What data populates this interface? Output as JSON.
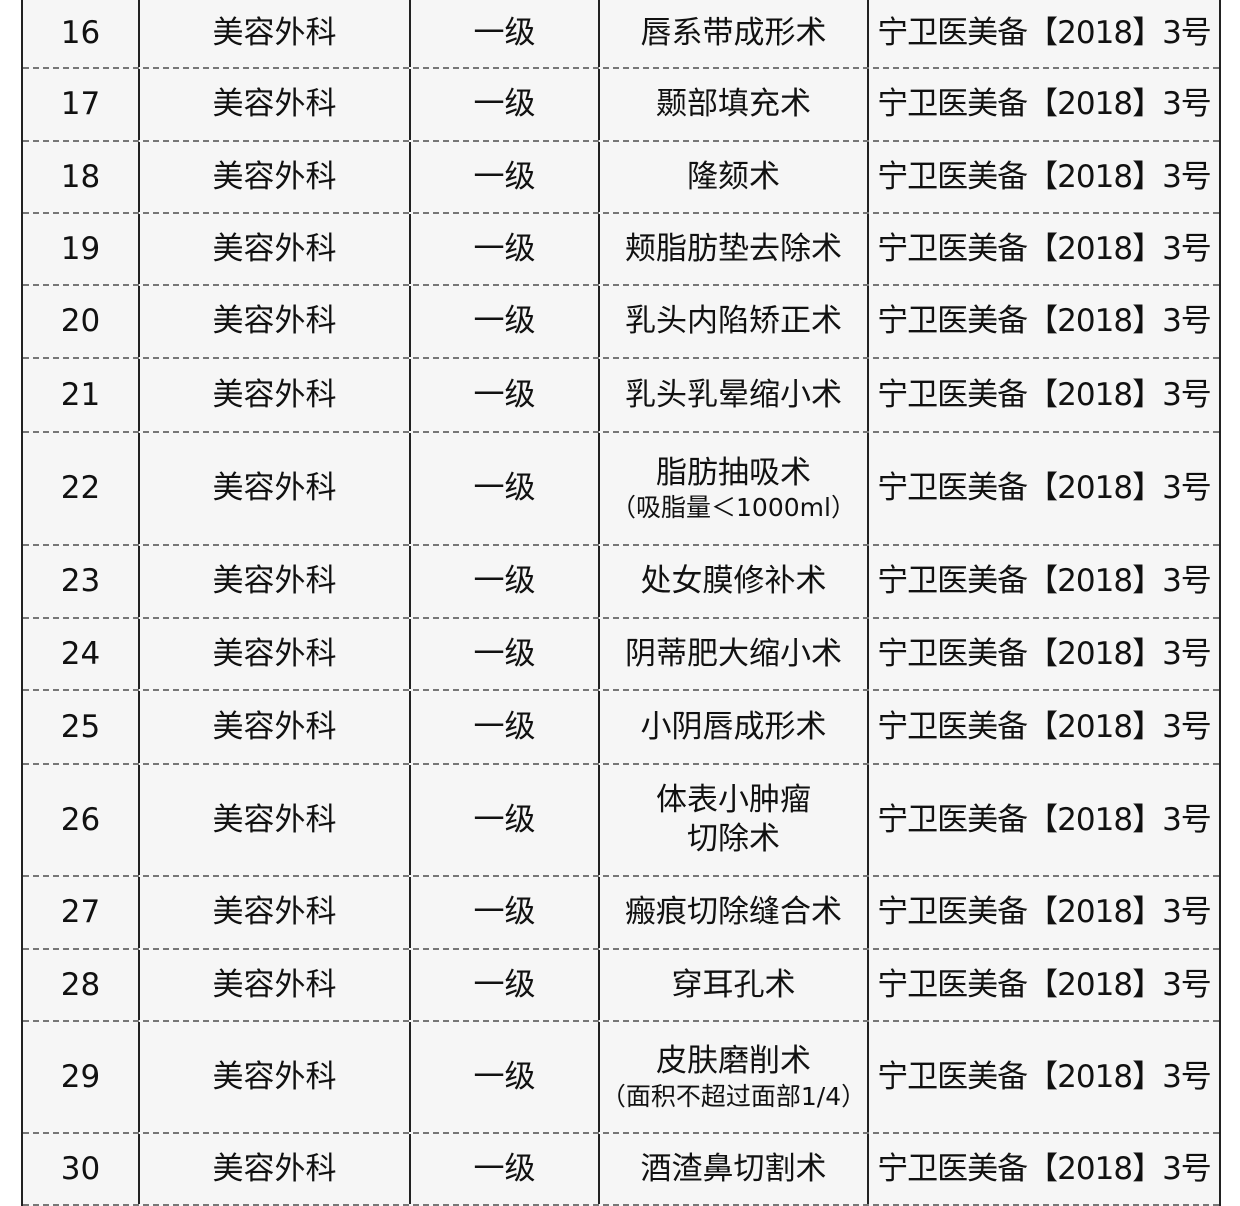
{
  "table": {
    "rows": [
      {
        "no": "16",
        "dept": "美容外科",
        "level": "一级",
        "name": "唇系带成形术",
        "note": "",
        "doc": "宁卫医美备【2018】3号"
      },
      {
        "no": "17",
        "dept": "美容外科",
        "level": "一级",
        "name": "颞部填充术",
        "note": "",
        "doc": "宁卫医美备【2018】3号"
      },
      {
        "no": "18",
        "dept": "美容外科",
        "level": "一级",
        "name": "隆颏术",
        "note": "",
        "doc": "宁卫医美备【2018】3号"
      },
      {
        "no": "19",
        "dept": "美容外科",
        "level": "一级",
        "name": "颊脂肪垫去除术",
        "note": "",
        "doc": "宁卫医美备【2018】3号"
      },
      {
        "no": "20",
        "dept": "美容外科",
        "level": "一级",
        "name": "乳头内陷矫正术",
        "note": "",
        "doc": "宁卫医美备【2018】3号"
      },
      {
        "no": "21",
        "dept": "美容外科",
        "level": "一级",
        "name": "乳头乳晕缩小术",
        "note": "",
        "doc": "宁卫医美备【2018】3号"
      },
      {
        "no": "22",
        "dept": "美容外科",
        "level": "一级",
        "name": "脂肪抽吸术",
        "note": "（吸脂量＜1000ml）",
        "doc": "宁卫医美备【2018】3号"
      },
      {
        "no": "23",
        "dept": "美容外科",
        "level": "一级",
        "name": "处女膜修补术",
        "note": "",
        "doc": "宁卫医美备【2018】3号"
      },
      {
        "no": "24",
        "dept": "美容外科",
        "level": "一级",
        "name": "阴蒂肥大缩小术",
        "note": "",
        "doc": "宁卫医美备【2018】3号"
      },
      {
        "no": "25",
        "dept": "美容外科",
        "level": "一级",
        "name": "小阴唇成形术",
        "note": "",
        "doc": "宁卫医美备【2018】3号"
      },
      {
        "no": "26",
        "dept": "美容外科",
        "level": "一级",
        "name": "体表小肿瘤",
        "note": "切除术",
        "doc": "宁卫医美备【2018】3号"
      },
      {
        "no": "27",
        "dept": "美容外科",
        "level": "一级",
        "name": "瘢痕切除缝合术",
        "note": "",
        "doc": "宁卫医美备【2018】3号"
      },
      {
        "no": "28",
        "dept": "美容外科",
        "level": "一级",
        "name": "穿耳孔术",
        "note": "",
        "doc": "宁卫医美备【2018】3号"
      },
      {
        "no": "29",
        "dept": "美容外科",
        "level": "一级",
        "name": "皮肤磨削术",
        "note": "（面积不超过面部1/4）",
        "doc": "宁卫医美备【2018】3号"
      },
      {
        "no": "30",
        "dept": "美容外科",
        "level": "一级",
        "name": "酒渣鼻切割术",
        "note": "",
        "doc": "宁卫医美备【2018】3号"
      }
    ]
  }
}
